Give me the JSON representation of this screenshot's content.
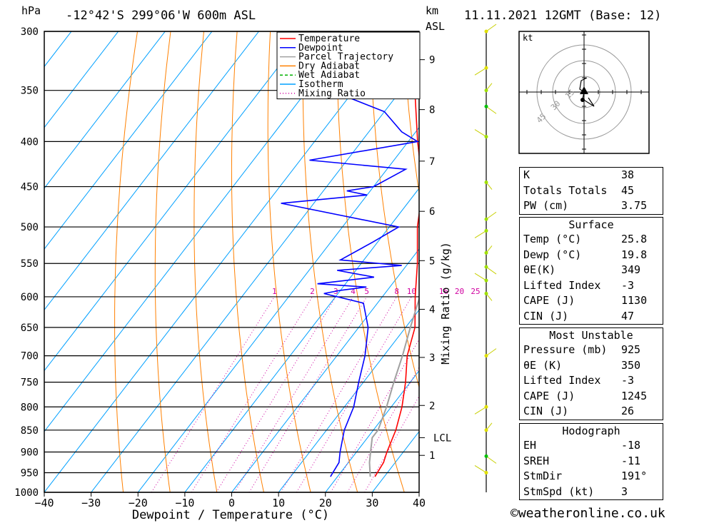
{
  "header": {
    "units_pressure": "hPa",
    "location": "-12°42'S 299°06'W 600m ASL",
    "km_label": "km",
    "asl_label": "ASL",
    "datetime": "11.11.2021 12GMT (Base: 12)"
  },
  "legend": {
    "items": [
      {
        "label": "Temperature",
        "color": "#ff0000",
        "style": "solid"
      },
      {
        "label": "Dewpoint",
        "color": "#0000ff",
        "style": "solid"
      },
      {
        "label": "Parcel Trajectory",
        "color": "#a0a0a0",
        "style": "solid"
      },
      {
        "label": "Dry Adiabat",
        "color": "#ff8000",
        "style": "solid"
      },
      {
        "label": "Wet Adiabat",
        "color": "#00b000",
        "style": "dashed"
      },
      {
        "label": "Isotherm",
        "color": "#00a0ff",
        "style": "solid"
      },
      {
        "label": "Mixing Ratio",
        "color": "#d000a0",
        "style": "dotted"
      }
    ]
  },
  "chart_data": {
    "type": "skew-t log-p",
    "xlabel": "Dewpoint / Temperature (°C)",
    "ylabel_left": "hPa",
    "ylabel_right": "Mixing Ratio (g/kg)",
    "x_ticks": [
      -40,
      -30,
      -20,
      -10,
      0,
      10,
      20,
      30,
      40
    ],
    "pressure_levels": [
      300,
      350,
      400,
      450,
      500,
      550,
      600,
      650,
      700,
      750,
      800,
      850,
      900,
      950,
      1000
    ],
    "height_km_ticks": [
      {
        "label": "1",
        "p": 908
      },
      {
        "label": "2",
        "p": 797
      },
      {
        "label": "3",
        "p": 703
      },
      {
        "label": "4",
        "p": 620
      },
      {
        "label": "5",
        "p": 546
      },
      {
        "label": "6",
        "p": 480
      },
      {
        "label": "7",
        "p": 421
      },
      {
        "label": "8",
        "p": 368
      },
      {
        "label": "9",
        "p": 323
      }
    ],
    "lcl": {
      "label": "LCL",
      "p": 867
    },
    "mixing_ratio_labels": [
      "1",
      "2",
      "3",
      "4",
      "5",
      "8",
      "10",
      "16",
      "20",
      "25"
    ],
    "series": [
      {
        "name": "Temperature",
        "color": "#ff0000",
        "points": [
          [
            960,
            28.0
          ],
          [
            925,
            27.5
          ],
          [
            900,
            26.5
          ],
          [
            850,
            24.8
          ],
          [
            800,
            22.3
          ],
          [
            750,
            19.0
          ],
          [
            700,
            15.0
          ],
          [
            650,
            12.0
          ],
          [
            600,
            7.0
          ],
          [
            550,
            2.0
          ],
          [
            500,
            -4.0
          ],
          [
            450,
            -9.5
          ],
          [
            400,
            -18.0
          ],
          [
            350,
            -27.0
          ],
          [
            300,
            -39.0
          ]
        ]
      },
      {
        "name": "Dewpoint",
        "color": "#0000ff",
        "points": [
          [
            960,
            18.5
          ],
          [
            925,
            18.0
          ],
          [
            900,
            16.5
          ],
          [
            850,
            13.8
          ],
          [
            800,
            12.0
          ],
          [
            750,
            9.0
          ],
          [
            700,
            6.0
          ],
          [
            650,
            2.0
          ],
          [
            610,
            -3.0
          ],
          [
            595,
            -13.0
          ],
          [
            590,
            -10.0
          ],
          [
            585,
            -5.0
          ],
          [
            580,
            -16.0
          ],
          [
            570,
            -5.0
          ],
          [
            560,
            -14.0
          ],
          [
            553,
            -1.0
          ],
          [
            545,
            -15.0
          ],
          [
            520,
            -11.0
          ],
          [
            500,
            -8.0
          ],
          [
            470,
            -37.0
          ],
          [
            460,
            -20.0
          ],
          [
            455,
            -25.0
          ],
          [
            450,
            -20.0
          ],
          [
            430,
            -16.0
          ],
          [
            420,
            -38.0
          ],
          [
            400,
            -18.0
          ],
          [
            390,
            -23.0
          ],
          [
            370,
            -30.0
          ],
          [
            350,
            -45.0
          ],
          [
            325,
            -32.0
          ],
          [
            315,
            -40.0
          ],
          [
            310,
            -36.0
          ],
          [
            305,
            -38.0
          ],
          [
            300,
            -44.0
          ]
        ]
      },
      {
        "name": "Parcel Trajectory",
        "color": "#a0a0a0",
        "points": [
          [
            960,
            27.0
          ],
          [
            925,
            24.5
          ],
          [
            900,
            23.0
          ],
          [
            867,
            21.0
          ],
          [
            850,
            21.0
          ],
          [
            800,
            19.0
          ],
          [
            750,
            16.5
          ],
          [
            700,
            14.0
          ],
          [
            650,
            11.0
          ],
          [
            600,
            8.0
          ],
          [
            550,
            4.5
          ],
          [
            500,
            0.5
          ],
          [
            450,
            -4.5
          ],
          [
            400,
            -11.0
          ],
          [
            370,
            -16.0
          ]
        ]
      }
    ],
    "wind_profile_markers": [
      {
        "p": 300,
        "color": "#e0e000"
      },
      {
        "p": 330,
        "color": "#e0e000"
      },
      {
        "p": 350,
        "color": "#a0e000"
      },
      {
        "p": 365,
        "color": "#00c000"
      },
      {
        "p": 395,
        "color": "#a0e000"
      },
      {
        "p": 445,
        "color": "#a0e000"
      },
      {
        "p": 490,
        "color": "#a0e000"
      },
      {
        "p": 505,
        "color": "#a0e000"
      },
      {
        "p": 535,
        "color": "#a0e000"
      },
      {
        "p": 555,
        "color": "#a0e000"
      },
      {
        "p": 575,
        "color": "#a0e000"
      },
      {
        "p": 595,
        "color": "#a0e000"
      },
      {
        "p": 700,
        "color": "#e0e000"
      },
      {
        "p": 800,
        "color": "#e0e000"
      },
      {
        "p": 850,
        "color": "#e0e000"
      },
      {
        "p": 910,
        "color": "#00c000"
      },
      {
        "p": 950,
        "color": "#e0e000"
      }
    ]
  },
  "hodograph": {
    "unit": "kt",
    "rings": [
      "15",
      "30",
      "45"
    ]
  },
  "indices": [
    {
      "label": "K",
      "value": "38"
    },
    {
      "label": "Totals Totals",
      "value": "45"
    },
    {
      "label": "PW (cm)",
      "value": "3.75"
    }
  ],
  "surface": {
    "title": "Surface",
    "rows": [
      {
        "label": "Temp (°C)",
        "value": "25.8"
      },
      {
        "label": "Dewp (°C)",
        "value": "19.8"
      },
      {
        "label": "θE(K)",
        "value": "349"
      },
      {
        "label": "Lifted Index",
        "value": "-3"
      },
      {
        "label": "CAPE (J)",
        "value": "1130"
      },
      {
        "label": "CIN (J)",
        "value": "47"
      }
    ]
  },
  "most_unstable": {
    "title": "Most Unstable",
    "rows": [
      {
        "label": "Pressure (mb)",
        "value": "925"
      },
      {
        "label": "θE (K)",
        "value": "350"
      },
      {
        "label": "Lifted Index",
        "value": "-3"
      },
      {
        "label": "CAPE (J)",
        "value": "1245"
      },
      {
        "label": "CIN (J)",
        "value": "26"
      }
    ]
  },
  "hodograph_table": {
    "title": "Hodograph",
    "rows": [
      {
        "label": "EH",
        "value": "-18"
      },
      {
        "label": "SREH",
        "value": "-11"
      },
      {
        "label": "StmDir",
        "value": "191°"
      },
      {
        "label": "StmSpd (kt)",
        "value": "3"
      }
    ]
  },
  "credit": "©weatheronline.co.uk"
}
